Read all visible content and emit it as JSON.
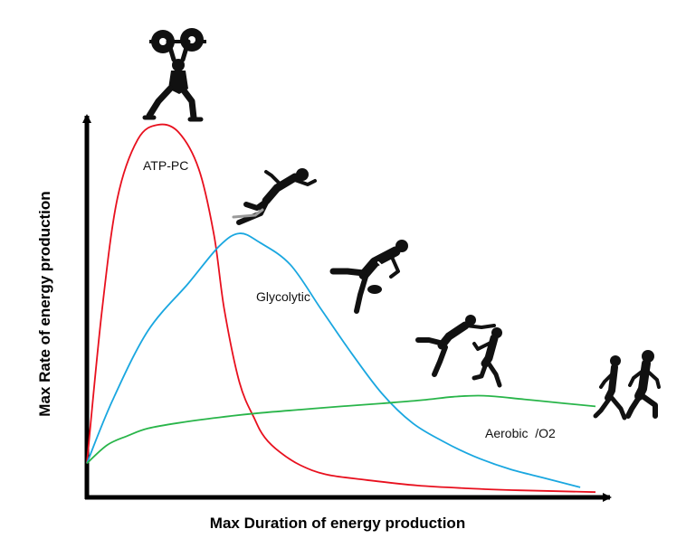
{
  "chart_data": {
    "type": "line",
    "title": "",
    "xlabel": "Max Duration of energy production",
    "ylabel": "Max Rate of energy production",
    "xlim": [
      0,
      100
    ],
    "ylim": [
      0,
      100
    ],
    "ticks": "none",
    "grid": false,
    "legend": "none",
    "series": [
      {
        "name": "ATP-PC",
        "color": "#e8101e",
        "x": [
          0,
          3,
          6,
          10,
          14,
          18,
          22,
          25,
          27,
          30,
          33,
          35,
          38,
          42,
          47,
          55,
          65,
          75,
          85,
          100
        ],
        "y": [
          8,
          50,
          80,
          96,
          100,
          98,
          88,
          70,
          50,
          30,
          20,
          15,
          11,
          7.5,
          5,
          3.5,
          2,
          1.2,
          0.7,
          0.2
        ]
      },
      {
        "name": "Glycolytic",
        "color": "#1aa7e0",
        "x": [
          0,
          5,
          12,
          20,
          26,
          30,
          34,
          40,
          46,
          52,
          58,
          64,
          70,
          76,
          83,
          90,
          97
        ],
        "y": [
          8,
          25,
          44,
          57,
          67,
          70.5,
          68,
          62,
          50,
          38,
          27,
          19,
          14,
          10,
          6.5,
          4,
          1.5
        ]
      },
      {
        "name": "Aerobic /O2",
        "color": "#29b54a",
        "x": [
          0,
          4,
          8,
          12,
          18,
          26,
          34,
          42,
          50,
          58,
          66,
          72,
          78,
          86,
          94,
          100
        ],
        "y": [
          8,
          13,
          15.5,
          17.5,
          19,
          20.5,
          21.7,
          22.6,
          23.5,
          24.3,
          25.2,
          26.1,
          26.4,
          25.4,
          24.3,
          23.5
        ]
      }
    ],
    "annotations": [
      "ATP-PC",
      "Glycolytic",
      "Aerobic  /O2"
    ]
  },
  "colors": {
    "axis": "#000000",
    "silhouette": "#111111"
  },
  "icons": [
    "weightlifter-icon",
    "sprinter-icon",
    "rugby-player-icon",
    "footballers-icon",
    "runners-icon"
  ]
}
